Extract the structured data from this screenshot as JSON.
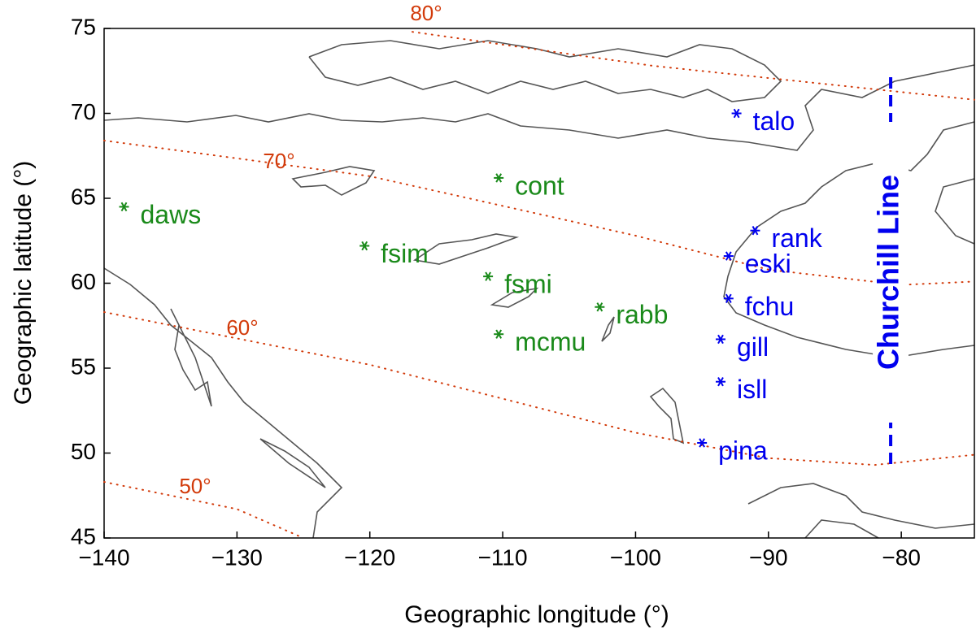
{
  "chart_data": {
    "type": "scatter",
    "x_label": "Geographic longitude (°)",
    "y_label": "Geographic latitude (°)",
    "xlim": [
      -140,
      -74.5
    ],
    "ylim": [
      45,
      75
    ],
    "xticks": [
      {
        "value": -140,
        "label": "−140"
      },
      {
        "value": -130,
        "label": "−130"
      },
      {
        "value": -120,
        "label": "−120"
      },
      {
        "value": -110,
        "label": "−110"
      },
      {
        "value": -100,
        "label": "−100"
      },
      {
        "value": -90,
        "label": "−90"
      },
      {
        "value": -80,
        "label": "−80"
      }
    ],
    "yticks": [
      45,
      50,
      55,
      60,
      65,
      70,
      75
    ],
    "stations": [
      {
        "name": "daws",
        "x": -138.5,
        "y": 64.5,
        "color": "#1a8a1a"
      },
      {
        "name": "cont",
        "x": -110.3,
        "y": 66.2,
        "color": "#1a8a1a"
      },
      {
        "name": "fsim",
        "x": -120.4,
        "y": 62.2,
        "color": "#1a8a1a"
      },
      {
        "name": "fsmi",
        "x": -111.1,
        "y": 60.4,
        "color": "#1a8a1a"
      },
      {
        "name": "rabb",
        "x": -102.7,
        "y": 58.6,
        "color": "#1a8a1a"
      },
      {
        "name": "mcmu",
        "x": -110.3,
        "y": 57.0,
        "color": "#1a8a1a"
      },
      {
        "name": "talo",
        "x": -92.4,
        "y": 70.0,
        "color": "#0000ee"
      },
      {
        "name": "rank",
        "x": -91.0,
        "y": 63.1,
        "color": "#0000ee"
      },
      {
        "name": "eski",
        "x": -93.0,
        "y": 61.6,
        "color": "#0000ee"
      },
      {
        "name": "fchu",
        "x": -93.0,
        "y": 59.1,
        "color": "#0000ee"
      },
      {
        "name": "gill",
        "x": -93.6,
        "y": 56.7,
        "color": "#0000ee"
      },
      {
        "name": "isll",
        "x": -93.6,
        "y": 54.2,
        "color": "#0000ee"
      },
      {
        "name": "pina",
        "x": -95.0,
        "y": 50.6,
        "color": "#0000ee"
      }
    ],
    "contours": [
      {
        "label": "80°",
        "color": "#d23a0a",
        "x": [
          -116.8,
          -98.7,
          -74.5
        ],
        "y": [
          74.8,
          72.8,
          70.8
        ]
      },
      {
        "label": "70°",
        "color": "#d23a0a",
        "x": [
          -140,
          -120,
          -100,
          -90,
          -80,
          -74.5
        ],
        "y": [
          68.4,
          66.3,
          62.8,
          60.8,
          59.9,
          60.1
        ]
      },
      {
        "label": "60°",
        "color": "#d23a0a",
        "x": [
          -140,
          -120,
          -100,
          -90,
          -82,
          -74.5
        ],
        "y": [
          58.3,
          55.2,
          51.2,
          49.7,
          49.3,
          49.9
        ]
      },
      {
        "label": "50°",
        "color": "#d23a0a",
        "x": [
          -140,
          -130,
          -125
        ],
        "y": [
          48.3,
          46.7,
          45
        ]
      }
    ],
    "churchill_line": {
      "label": "Churchill Line",
      "x": -80.8,
      "color": "#0000ee"
    }
  }
}
